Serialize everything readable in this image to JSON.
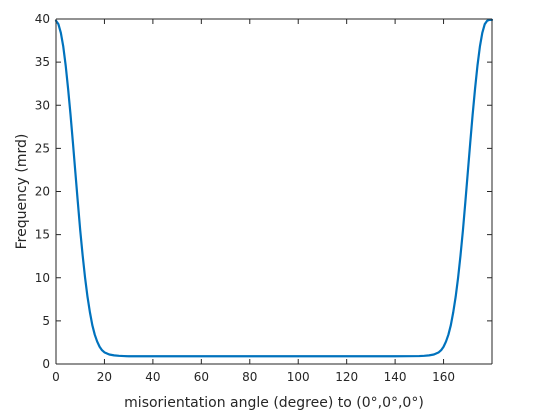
{
  "chart_data": {
    "type": "line",
    "xlabel": "misorientation angle (degree) to (0°,0°,0°)",
    "ylabel": "Frequency (mrd)",
    "xlim": [
      0,
      180
    ],
    "ylim": [
      0,
      40
    ],
    "xticks": [
      0,
      20,
      40,
      60,
      80,
      100,
      120,
      140,
      160
    ],
    "yticks": [
      0,
      5,
      10,
      15,
      20,
      25,
      30,
      35,
      40
    ],
    "grid": false,
    "series": [
      {
        "color": "#0072bd",
        "points": [
          [
            0,
            39.8
          ],
          [
            1,
            39.4
          ],
          [
            2,
            38.4
          ],
          [
            3,
            36.8
          ],
          [
            4,
            34.6
          ],
          [
            5,
            31.9
          ],
          [
            6,
            28.9
          ],
          [
            7,
            25.6
          ],
          [
            8,
            22.2
          ],
          [
            9,
            18.8
          ],
          [
            10,
            15.5
          ],
          [
            11,
            12.6
          ],
          [
            12,
            10.0
          ],
          [
            13,
            7.8
          ],
          [
            14,
            6.0
          ],
          [
            15,
            4.5
          ],
          [
            16,
            3.4
          ],
          [
            17,
            2.6
          ],
          [
            18,
            2.0
          ],
          [
            19,
            1.6
          ],
          [
            20,
            1.35
          ],
          [
            22,
            1.1
          ],
          [
            24,
            1.0
          ],
          [
            26,
            0.95
          ],
          [
            28,
            0.92
          ],
          [
            30,
            0.9
          ],
          [
            40,
            0.9
          ],
          [
            60,
            0.9
          ],
          [
            80,
            0.9
          ],
          [
            100,
            0.9
          ],
          [
            120,
            0.9
          ],
          [
            140,
            0.9
          ],
          [
            150,
            0.92
          ],
          [
            152,
            0.95
          ],
          [
            154,
            1.0
          ],
          [
            156,
            1.1
          ],
          [
            158,
            1.35
          ],
          [
            159,
            1.6
          ],
          [
            160,
            2.0
          ],
          [
            161,
            2.6
          ],
          [
            162,
            3.4
          ],
          [
            163,
            4.5
          ],
          [
            164,
            6.0
          ],
          [
            165,
            7.8
          ],
          [
            166,
            10.0
          ],
          [
            167,
            12.6
          ],
          [
            168,
            15.5
          ],
          [
            169,
            18.8
          ],
          [
            170,
            22.2
          ],
          [
            171,
            25.6
          ],
          [
            172,
            28.9
          ],
          [
            173,
            31.9
          ],
          [
            174,
            34.6
          ],
          [
            175,
            36.8
          ],
          [
            176,
            38.4
          ],
          [
            177,
            39.4
          ],
          [
            178,
            39.8
          ],
          [
            179,
            39.9
          ],
          [
            180,
            39.9
          ]
        ]
      }
    ]
  }
}
